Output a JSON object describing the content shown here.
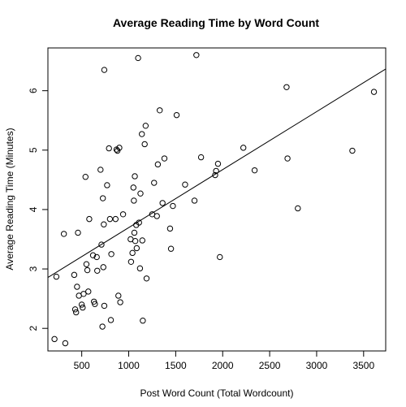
{
  "chart_data": {
    "type": "scatter",
    "title": "Average Reading Time by Word Count",
    "xlabel": "Post Word Count (Total Wordcount)",
    "ylabel": "Average Reading Time (Minutes)",
    "xlim": [
      140,
      3735
    ],
    "ylim": [
      1.62,
      6.72
    ],
    "xticks": [
      500,
      1000,
      1500,
      2000,
      2500,
      3000,
      3500
    ],
    "yticks": [
      2,
      3,
      4,
      5,
      6
    ],
    "grid": false,
    "legend": "none",
    "trend_line": {
      "type": "linear",
      "intercept": 2.72,
      "slope": 0.000976
    },
    "points": [
      {
        "x": 210,
        "y": 1.82
      },
      {
        "x": 230,
        "y": 2.87
      },
      {
        "x": 310,
        "y": 3.59
      },
      {
        "x": 325,
        "y": 1.75
      },
      {
        "x": 420,
        "y": 2.9
      },
      {
        "x": 430,
        "y": 2.32
      },
      {
        "x": 440,
        "y": 2.27
      },
      {
        "x": 450,
        "y": 2.7
      },
      {
        "x": 460,
        "y": 3.61
      },
      {
        "x": 470,
        "y": 2.55
      },
      {
        "x": 500,
        "y": 2.4
      },
      {
        "x": 510,
        "y": 2.35
      },
      {
        "x": 520,
        "y": 2.58
      },
      {
        "x": 540,
        "y": 4.55
      },
      {
        "x": 550,
        "y": 3.08
      },
      {
        "x": 560,
        "y": 2.98
      },
      {
        "x": 570,
        "y": 2.62
      },
      {
        "x": 580,
        "y": 3.84
      },
      {
        "x": 620,
        "y": 3.23
      },
      {
        "x": 630,
        "y": 2.45
      },
      {
        "x": 640,
        "y": 2.41
      },
      {
        "x": 660,
        "y": 3.2
      },
      {
        "x": 665,
        "y": 2.97
      },
      {
        "x": 700,
        "y": 4.67
      },
      {
        "x": 710,
        "y": 3.41
      },
      {
        "x": 720,
        "y": 2.03
      },
      {
        "x": 725,
        "y": 4.19
      },
      {
        "x": 730,
        "y": 3.03
      },
      {
        "x": 735,
        "y": 3.75
      },
      {
        "x": 740,
        "y": 6.35
      },
      {
        "x": 740,
        "y": 2.38
      },
      {
        "x": 770,
        "y": 4.41
      },
      {
        "x": 790,
        "y": 5.03
      },
      {
        "x": 800,
        "y": 3.84
      },
      {
        "x": 810,
        "y": 2.14
      },
      {
        "x": 815,
        "y": 3.25
      },
      {
        "x": 860,
        "y": 3.84
      },
      {
        "x": 870,
        "y": 5.01
      },
      {
        "x": 880,
        "y": 4.99
      },
      {
        "x": 890,
        "y": 2.55
      },
      {
        "x": 900,
        "y": 5.04
      },
      {
        "x": 910,
        "y": 2.44
      },
      {
        "x": 940,
        "y": 3.92
      },
      {
        "x": 1020,
        "y": 3.5
      },
      {
        "x": 1025,
        "y": 3.12
      },
      {
        "x": 1040,
        "y": 3.27
      },
      {
        "x": 1050,
        "y": 4.37
      },
      {
        "x": 1055,
        "y": 4.15
      },
      {
        "x": 1060,
        "y": 3.61
      },
      {
        "x": 1065,
        "y": 4.56
      },
      {
        "x": 1070,
        "y": 3.47
      },
      {
        "x": 1080,
        "y": 3.74
      },
      {
        "x": 1085,
        "y": 3.35
      },
      {
        "x": 1100,
        "y": 6.55
      },
      {
        "x": 1110,
        "y": 3.78
      },
      {
        "x": 1120,
        "y": 3.01
      },
      {
        "x": 1125,
        "y": 4.27
      },
      {
        "x": 1140,
        "y": 5.27
      },
      {
        "x": 1145,
        "y": 3.48
      },
      {
        "x": 1150,
        "y": 2.13
      },
      {
        "x": 1170,
        "y": 5.1
      },
      {
        "x": 1180,
        "y": 5.41
      },
      {
        "x": 1190,
        "y": 2.84
      },
      {
        "x": 1250,
        "y": 3.92
      },
      {
        "x": 1270,
        "y": 4.45
      },
      {
        "x": 1300,
        "y": 3.89
      },
      {
        "x": 1310,
        "y": 4.76
      },
      {
        "x": 1330,
        "y": 5.67
      },
      {
        "x": 1360,
        "y": 4.11
      },
      {
        "x": 1380,
        "y": 4.86
      },
      {
        "x": 1440,
        "y": 3.68
      },
      {
        "x": 1450,
        "y": 3.34
      },
      {
        "x": 1470,
        "y": 4.06
      },
      {
        "x": 1510,
        "y": 5.59
      },
      {
        "x": 1600,
        "y": 4.42
      },
      {
        "x": 1700,
        "y": 4.15
      },
      {
        "x": 1720,
        "y": 6.6
      },
      {
        "x": 1770,
        "y": 4.88
      },
      {
        "x": 1920,
        "y": 4.58
      },
      {
        "x": 1930,
        "y": 4.65
      },
      {
        "x": 1950,
        "y": 4.77
      },
      {
        "x": 1970,
        "y": 3.2
      },
      {
        "x": 2220,
        "y": 5.04
      },
      {
        "x": 2340,
        "y": 4.66
      },
      {
        "x": 2680,
        "y": 6.06
      },
      {
        "x": 2690,
        "y": 4.86
      },
      {
        "x": 2800,
        "y": 4.02
      },
      {
        "x": 3380,
        "y": 4.99
      },
      {
        "x": 3610,
        "y": 5.98
      }
    ]
  }
}
